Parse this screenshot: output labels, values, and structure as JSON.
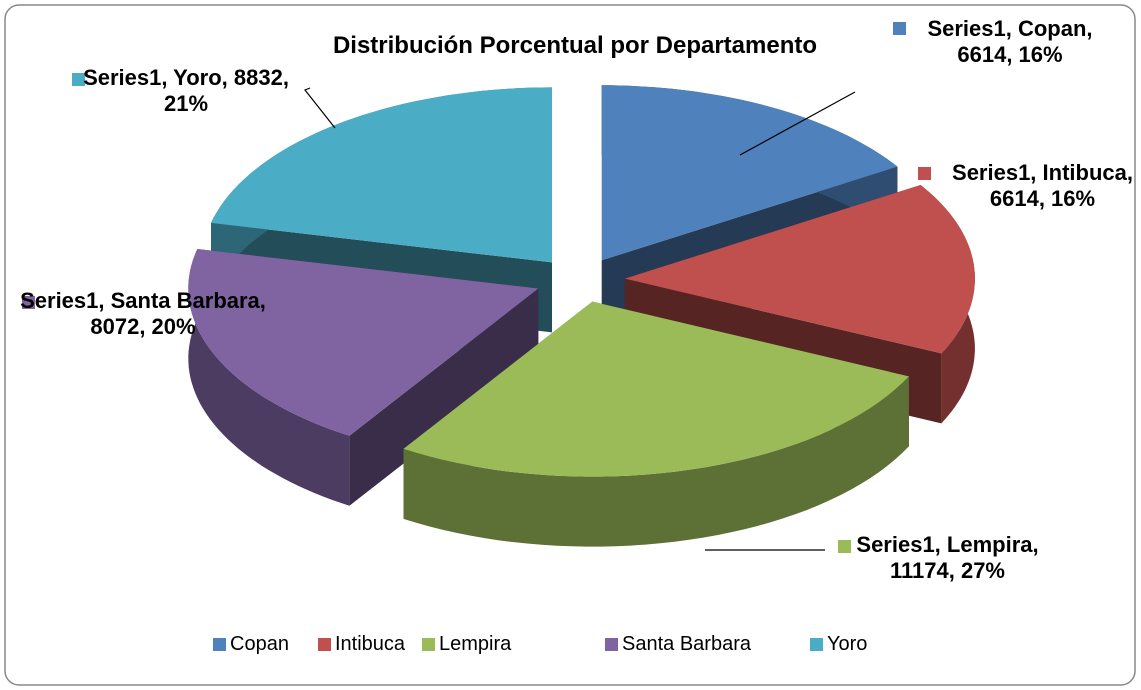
{
  "chart_data": {
    "type": "pie",
    "title": "Distribución Porcentual por Departamento",
    "series_name": "Series1",
    "categories": [
      "Copan",
      "Intibuca",
      "Lempira",
      "Santa Barbara",
      "Yoro"
    ],
    "values": [
      6614,
      6614,
      11174,
      8072,
      8832
    ],
    "value_labels": [
      "Series1, Copan, 6614, 16%",
      "Series1, Intibuca, 6614, 16%",
      "Series1, Lempira, 11174, 27%",
      "Series1, Santa Barbara, 8072, 20%",
      "Series1, Yoro, 8832, 21%"
    ],
    "colors": [
      "#4f81bd",
      "#c0504d",
      "#9bbb59",
      "#8064a2",
      "#4bacc6"
    ],
    "legend": "bottom"
  }
}
